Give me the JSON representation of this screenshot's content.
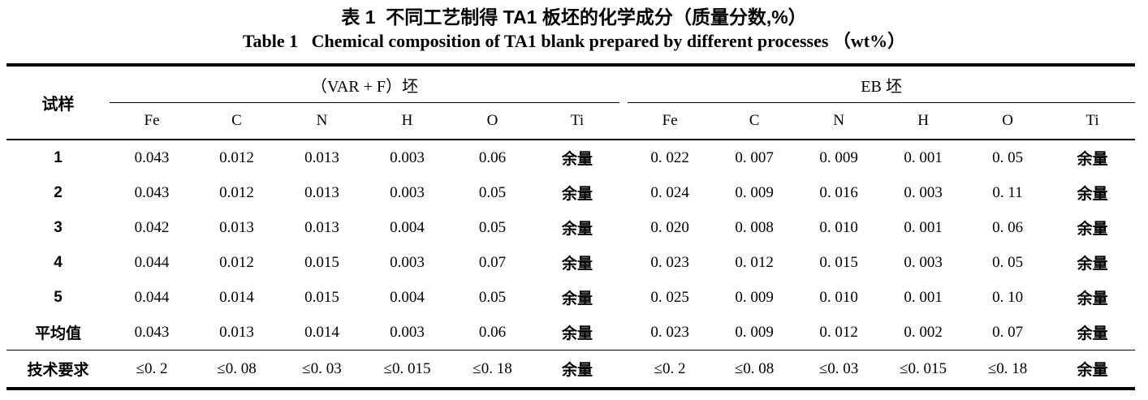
{
  "title": {
    "zh": "表 1  不同工艺制得 TA1 板坯的化学成分（质量分数,%）",
    "en": "Table 1   Chemical composition of TA1 blank prepared by different processes （wt%）"
  },
  "table": {
    "sample_header": "试样",
    "groups": [
      {
        "label": "（VAR + F）坯",
        "columns": [
          "Fe",
          "C",
          "N",
          "H",
          "O",
          "Ti"
        ]
      },
      {
        "label": "EB 坯",
        "columns": [
          "Fe",
          "C",
          "N",
          "H",
          "O",
          "Ti"
        ]
      }
    ],
    "rows": [
      {
        "sample": "1",
        "var_f": [
          "0.043",
          "0.012",
          "0.013",
          "0.003",
          "0.06",
          "余量"
        ],
        "eb": [
          "0. 022",
          "0. 007",
          "0. 009",
          "0. 001",
          "0. 05",
          "余量"
        ]
      },
      {
        "sample": "2",
        "var_f": [
          "0.043",
          "0.012",
          "0.013",
          "0.003",
          "0.05",
          "余量"
        ],
        "eb": [
          "0. 024",
          "0. 009",
          "0. 016",
          "0. 003",
          "0. 11",
          "余量"
        ]
      },
      {
        "sample": "3",
        "var_f": [
          "0.042",
          "0.013",
          "0.013",
          "0.004",
          "0.05",
          "余量"
        ],
        "eb": [
          "0. 020",
          "0. 008",
          "0. 010",
          "0. 001",
          "0. 06",
          "余量"
        ]
      },
      {
        "sample": "4",
        "var_f": [
          "0.044",
          "0.012",
          "0.015",
          "0.003",
          "0.07",
          "余量"
        ],
        "eb": [
          "0. 023",
          "0. 012",
          "0. 015",
          "0. 003",
          "0. 05",
          "余量"
        ]
      },
      {
        "sample": "5",
        "var_f": [
          "0.044",
          "0.014",
          "0.015",
          "0.004",
          "0.05",
          "余量"
        ],
        "eb": [
          "0. 025",
          "0. 009",
          "0. 010",
          "0. 001",
          "0. 10",
          "余量"
        ]
      },
      {
        "sample": "平均值",
        "var_f": [
          "0.043",
          "0.013",
          "0.014",
          "0.003",
          "0.06",
          "余量"
        ],
        "eb": [
          "0. 023",
          "0. 009",
          "0. 012",
          "0. 002",
          "0. 07",
          "余量"
        ]
      }
    ],
    "tech_row": {
      "sample": "技术要求",
      "var_f": [
        "≤0. 2",
        "≤0. 08",
        "≤0. 03",
        "≤0. 015",
        "≤0. 18",
        "余量"
      ],
      "eb": [
        "≤0. 2",
        "≤0. 08",
        "≤0. 03",
        "≤0. 015",
        "≤0. 18",
        "余量"
      ]
    }
  },
  "colors": {
    "text": "#000000",
    "rule": "#000000",
    "background": "#ffffff"
  }
}
